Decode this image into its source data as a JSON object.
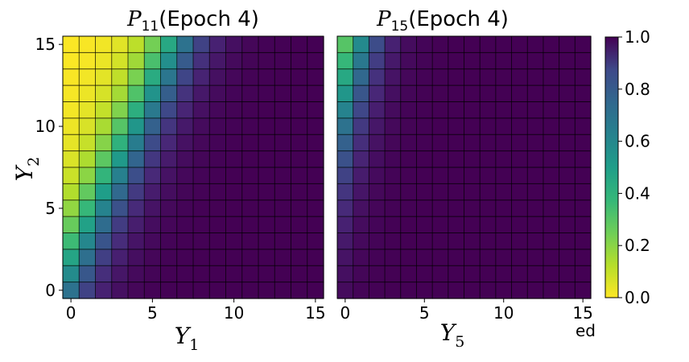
{
  "chart_data": [
    {
      "type": "heatmap",
      "title_main": "P",
      "title_sub": "11",
      "title_rest": "(Epoch 4)",
      "xlabel_main": "Y",
      "xlabel_sub": "1",
      "ylabel_main": "Y",
      "ylabel_sub": "2",
      "xlim": [
        -0.5,
        15.5
      ],
      "ylim": [
        -0.5,
        15.5
      ],
      "xticks": [
        "0",
        "5",
        "10",
        "15"
      ],
      "yticks": [
        "0",
        "5",
        "10",
        "15"
      ],
      "grid": true,
      "grid_size": 16,
      "value_model": "sigmoid",
      "value_params": {
        "a": 0.9,
        "b": 0.42,
        "c": 0.5
      },
      "colormap": "viridis_r"
    },
    {
      "type": "heatmap",
      "title_main": "P",
      "title_sub": "15",
      "title_rest": "(Epoch 4)",
      "xlabel_main": "Y",
      "xlabel_sub": "5",
      "ylabel_main": "",
      "ylabel_sub": "",
      "xlim": [
        -0.5,
        15.5
      ],
      "ylim": [
        -0.5,
        15.5
      ],
      "xticks": [
        "0",
        "5",
        "10",
        "15"
      ],
      "yticks": [],
      "grid": true,
      "grid_size": 16,
      "value_model": "sigmoid",
      "value_params": {
        "a": 1.1,
        "b": 0.3,
        "c": 3.5
      },
      "colormap": "viridis_r"
    }
  ],
  "colorbar": {
    "ticks": [
      "0.0",
      "0.2",
      "0.4",
      "0.6",
      "0.8",
      "1.0"
    ],
    "range": [
      0,
      1
    ],
    "colormap": "viridis_r"
  },
  "artifact_text": "ed"
}
